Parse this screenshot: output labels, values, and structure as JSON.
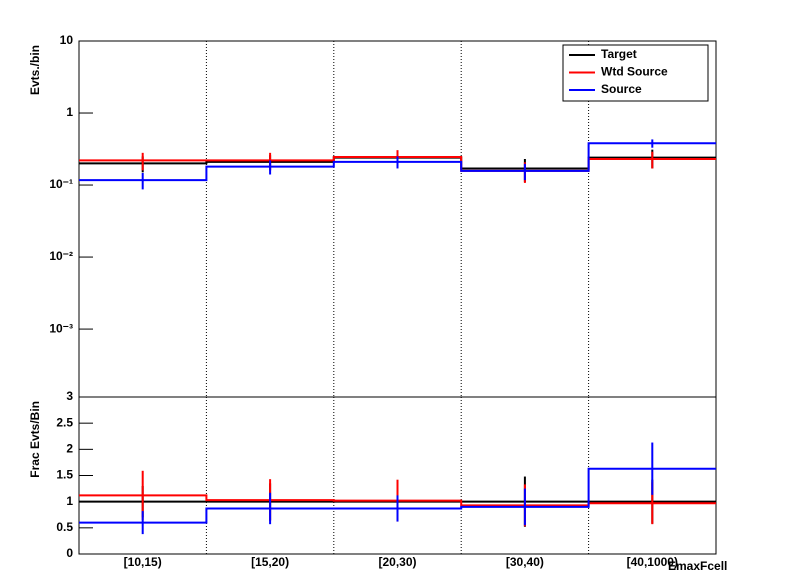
{
  "chart_data": [
    {
      "type": "step",
      "ylabel": "Evts./bin",
      "log": true,
      "ylim": [
        0.000114,
        10
      ],
      "yticks": [
        10,
        1,
        {
          "value": 0.1,
          "label": "10⁻¹"
        },
        {
          "value": 0.01,
          "label": "10⁻²"
        },
        {
          "value": 0.001,
          "label": "10⁻³"
        }
      ],
      "xgrid": true,
      "legend": "upper right",
      "series": [
        {
          "name": "Target",
          "color": "#000000",
          "values": [
            0.2,
            0.21,
            0.24,
            0.17,
            0.24
          ],
          "errors": [
            0.05,
            0.05,
            0.05,
            0.06,
            0.07
          ]
        },
        {
          "name": "Wtd Source",
          "color": "#ff0000",
          "values": [
            0.22,
            0.22,
            0.245,
            0.157,
            0.23
          ],
          "errors": [
            0.06,
            0.06,
            0.06,
            0.05,
            0.06
          ]
        },
        {
          "name": "Source",
          "color": "#0000ff",
          "values": [
            0.117,
            0.18,
            0.21,
            0.157,
            0.38
          ],
          "errors": [
            0.03,
            0.04,
            0.04,
            0.04,
            0.05
          ]
        }
      ]
    },
    {
      "type": "step",
      "ylabel": "Frac Evts/Bin",
      "xlabel": "EmaxFcell",
      "log": false,
      "categories": [
        "[10,15)",
        "[15,20)",
        "[20,30)",
        "[30,40)",
        "[40,1000)"
      ],
      "ylim": [
        0,
        3
      ],
      "yticks": [
        0,
        0.5,
        1,
        1.5,
        2,
        2.5,
        3
      ],
      "xgrid": true,
      "series": [
        {
          "color": "#000000",
          "values": [
            1,
            1,
            1,
            1,
            1
          ],
          "errors": [
            0.3,
            0.35,
            0.35,
            0.48,
            0.42
          ]
        },
        {
          "color": "#ff0000",
          "values": [
            1.12,
            1.03,
            1.02,
            0.93,
            0.97
          ],
          "errors": [
            0.47,
            0.4,
            0.4,
            0.4,
            0.4
          ]
        },
        {
          "color": "#0000ff",
          "values": [
            0.6,
            0.87,
            0.87,
            0.9,
            1.63
          ],
          "errors": [
            0.22,
            0.3,
            0.25,
            0.35,
            0.5
          ]
        }
      ]
    }
  ]
}
